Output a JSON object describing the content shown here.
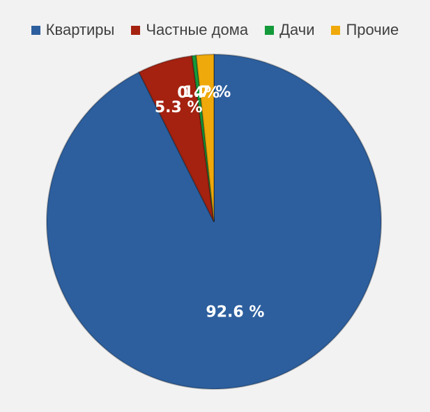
{
  "chart_data": {
    "type": "pie",
    "categories": [
      "Квартиры",
      "Частные дома",
      "Дачи",
      "Прочие"
    ],
    "values": [
      92.6,
      5.3,
      0.4,
      1.7
    ],
    "data_labels": [
      "92.6 %",
      "5.3 %",
      "0.4%",
      "1.7 %"
    ],
    "colors": [
      "#2d5f9e",
      "#a52210",
      "#149a3a",
      "#efa90a"
    ],
    "legend_position": "top",
    "title": "",
    "start_angle": "12 o'clock",
    "direction": "clockwise"
  }
}
